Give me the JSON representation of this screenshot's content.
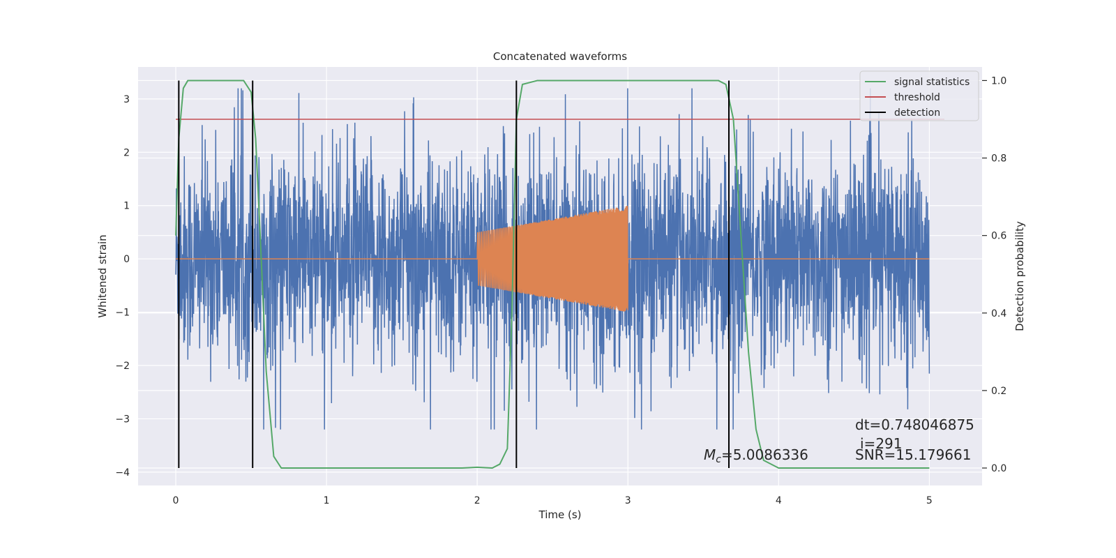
{
  "chart_data": {
    "type": "line",
    "title": "Concatenated waveforms",
    "xlabel": "Time (s)",
    "ylabel": "Whitened strain",
    "ylabel_right": "Detection probability",
    "xlim": [
      -0.25,
      5.35
    ],
    "ylim": [
      -4.25,
      3.6
    ],
    "ylim_right": [
      -0.045,
      1.035
    ],
    "xticks": [
      0,
      1,
      2,
      3,
      4,
      5
    ],
    "yticks": [
      -4,
      -3,
      -2,
      -1,
      0,
      1,
      2,
      3
    ],
    "yticks_right": [
      0.0,
      0.2,
      0.4,
      0.6,
      0.8,
      1.0
    ],
    "xtick_labels": [
      "0",
      "1",
      "2",
      "3",
      "4",
      "5"
    ],
    "ytick_labels": [
      "−4",
      "−3",
      "−2",
      "−1",
      "0",
      "1",
      "2",
      "3"
    ],
    "ytick_right_labels": [
      "0.0",
      "0.2",
      "0.4",
      "0.6",
      "0.8",
      "1.0"
    ],
    "grid": true,
    "legend_position": "top-right",
    "colors": {
      "background": "#eaeaf2",
      "grid": "#ffffff",
      "strain": "#4c72b0",
      "injection": "#dd8452",
      "signal_statistics": "#55a868",
      "threshold": "#c44e52",
      "detection": "#000000"
    },
    "series": [
      {
        "name": "",
        "axis": "left",
        "description_type": "noise",
        "x_range": [
          0,
          5
        ],
        "amplitude_envelope": 3.2
      },
      {
        "name": "",
        "axis": "left",
        "description_type": "chirp",
        "x_range": [
          2.0,
          3.0
        ],
        "amplitude_start": 0.5,
        "amplitude_end": 1.0
      },
      {
        "name": "signal statistics",
        "axis": "right",
        "x": [
          0.0,
          0.02,
          0.05,
          0.08,
          0.12,
          0.2,
          0.4,
          0.45,
          0.5,
          0.53,
          0.56,
          0.6,
          0.65,
          0.7,
          0.8,
          1.0,
          1.5,
          1.9,
          2.0,
          2.1,
          2.15,
          2.2,
          2.23,
          2.26,
          2.3,
          2.4,
          3.0,
          3.6,
          3.65,
          3.7,
          3.75,
          3.8,
          3.85,
          3.9,
          4.0,
          4.5,
          5.0
        ],
        "y": [
          0.6,
          0.85,
          0.98,
          1.0,
          1.0,
          1.0,
          1.0,
          1.0,
          0.97,
          0.85,
          0.6,
          0.25,
          0.03,
          0.0,
          0.0,
          0.0,
          0.0,
          0.0,
          0.002,
          0.0,
          0.01,
          0.05,
          0.4,
          0.9,
          0.99,
          1.0,
          1.0,
          1.0,
          0.99,
          0.9,
          0.6,
          0.3,
          0.1,
          0.02,
          0.0,
          0.0,
          0.0
        ]
      },
      {
        "name": "threshold",
        "axis": "right",
        "x": [
          0.0,
          5.1
        ],
        "y": [
          0.9,
          0.9
        ]
      },
      {
        "name": "detection",
        "axis": "right",
        "vlines": [
          0.02,
          0.51,
          2.26,
          3.67
        ],
        "y_range": [
          0.0,
          1.0
        ]
      }
    ],
    "annotations": [
      {
        "id": "mc",
        "symbol": "M",
        "subscript": "c",
        "text": "=5.0086336"
      },
      {
        "id": "dt",
        "text": "dt=0.748046875"
      },
      {
        "id": "i",
        "text": "i=291"
      },
      {
        "id": "snr",
        "text": "SNR=15.179661"
      }
    ]
  }
}
